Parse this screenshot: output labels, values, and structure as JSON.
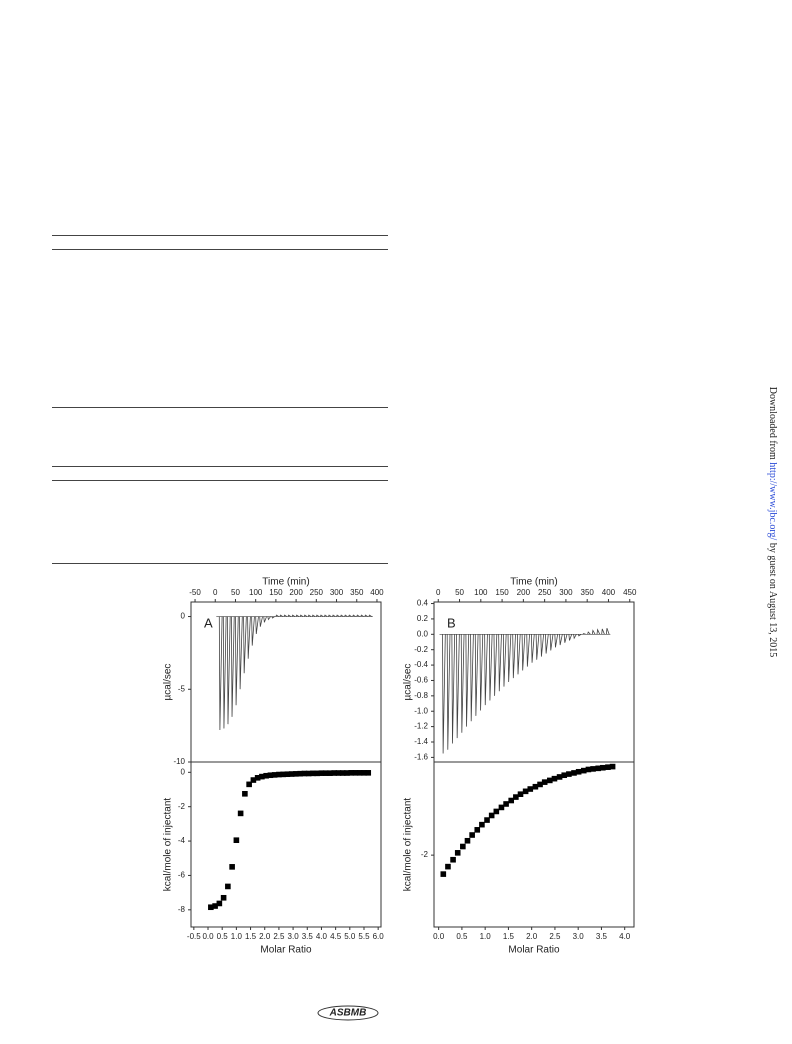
{
  "side_note": {
    "prefix": "Downloaded from ",
    "link": "http://www.jbc.org/",
    "suffix": " by guest on August 13, 2015"
  },
  "logo": "ASBMB",
  "chart_data": [
    {
      "type": "spikes",
      "panel_label": "A",
      "xlabel": "Time (min)",
      "ylabel": "µcal/sec",
      "xlim": [
        -60,
        410
      ],
      "xticks": [
        -50,
        0,
        50,
        100,
        150,
        200,
        250,
        300,
        350,
        400
      ],
      "ylim": [
        -10,
        1
      ],
      "yticks": [
        -10,
        -5,
        0
      ],
      "x": [
        10,
        20,
        30,
        40,
        50,
        60,
        70,
        80,
        90,
        100,
        110,
        120,
        130,
        140,
        150,
        160,
        170,
        180,
        190,
        200,
        210,
        220,
        230,
        240,
        250,
        260,
        270,
        280,
        290,
        300,
        310,
        320,
        330,
        340,
        350,
        360,
        370,
        380
      ],
      "values": [
        -7.8,
        -7.7,
        -7.4,
        -6.9,
        -6.1,
        -5.0,
        -3.9,
        -2.9,
        -2.0,
        -1.2,
        -0.7,
        -0.4,
        -0.2,
        -0.1,
        0.1,
        0.1,
        0.1,
        0.1,
        0.1,
        0.1,
        0.1,
        0.1,
        0.1,
        0.1,
        0.1,
        0.1,
        0.1,
        0.1,
        0.1,
        0.1,
        0.1,
        0.1,
        0.1,
        0.1,
        0.1,
        0.1,
        0.1,
        0.1
      ],
      "color": "#444444"
    },
    {
      "type": "scatter",
      "xlabel": "Molar Ratio",
      "ylabel": "kcal/mole of injectant",
      "xlim": [
        -0.6,
        6.1
      ],
      "xticks": [
        -0.5,
        {
          "value": 0,
          "label": "0.0"
        },
        0.5,
        {
          "value": 1,
          "label": "1.0"
        },
        1.5,
        {
          "value": 2,
          "label": "2.0"
        },
        2.5,
        {
          "value": 3,
          "label": "3.0"
        },
        3.5,
        {
          "value": 4,
          "label": "4.0"
        },
        4.5,
        {
          "value": 5,
          "label": "5.0"
        },
        5.5,
        {
          "value": 6,
          "label": "6.0"
        }
      ],
      "ylim": [
        -9,
        0.6
      ],
      "yticks": [
        -8,
        -6,
        -4,
        -2,
        0
      ],
      "x": [
        0.1,
        0.25,
        0.4,
        0.55,
        0.7,
        0.85,
        1,
        1.15,
        1.3,
        1.45,
        1.6,
        1.75,
        1.9,
        2.05,
        2.2,
        2.35,
        2.5,
        2.65,
        2.8,
        2.95,
        3.1,
        3.25,
        3.4,
        3.55,
        3.7,
        3.85,
        4,
        4.15,
        4.3,
        4.45,
        4.6,
        4.75,
        4.9,
        5.05,
        5.2,
        5.35,
        5.5,
        5.65
      ],
      "values": [
        -7.85,
        -7.78,
        -7.63,
        -7.3,
        -6.64,
        -5.5,
        -3.95,
        -2.39,
        -1.25,
        -0.7,
        -0.45,
        -0.32,
        -0.25,
        -0.2,
        -0.17,
        -0.15,
        -0.13,
        -0.12,
        -0.11,
        -0.1,
        -0.09,
        -0.08,
        -0.07,
        -0.07,
        -0.06,
        -0.06,
        -0.05,
        -0.05,
        -0.05,
        -0.04,
        -0.04,
        -0.04,
        -0.04,
        -0.03,
        -0.03,
        -0.03,
        -0.03,
        -0.03
      ],
      "color": "#000000"
    },
    {
      "type": "spikes",
      "panel_label": "B",
      "xlabel": "Time (min)",
      "ylabel": "µcal/sec",
      "xlim": [
        -10,
        460
      ],
      "xticks": [
        0,
        50,
        100,
        150,
        200,
        250,
        300,
        350,
        400,
        450
      ],
      "ylim": [
        -1.66,
        0.42
      ],
      "yticks": [
        0.4,
        0.2,
        {
          "value": 0,
          "label": "0.0"
        },
        -0.2,
        -0.4,
        -0.6,
        -0.8,
        {
          "value": -1,
          "label": "-1.0"
        },
        -1.2,
        -1.4,
        -1.6
      ],
      "x": [
        10,
        21,
        32,
        43,
        54,
        65,
        76,
        87,
        98,
        109,
        120,
        131,
        142,
        153,
        164,
        175,
        186,
        197,
        208,
        219,
        230,
        241,
        252,
        263,
        274,
        285,
        296,
        307,
        318,
        329,
        340,
        351,
        362,
        373,
        384,
        395
      ],
      "values": [
        -1.55,
        -1.5,
        -1.42,
        -1.35,
        -1.28,
        -1.2,
        -1.13,
        -1.06,
        -0.99,
        -0.92,
        -0.86,
        -0.8,
        -0.74,
        -0.68,
        -0.62,
        -0.57,
        -0.52,
        -0.47,
        -0.42,
        -0.37,
        -0.33,
        -0.29,
        -0.25,
        -0.21,
        -0.17,
        -0.14,
        -0.11,
        -0.08,
        -0.05,
        -0.02,
        0.01,
        0.03,
        0.05,
        0.06,
        0.07,
        0.08
      ],
      "color": "#444444"
    },
    {
      "type": "scatter",
      "xlabel": "Molar Ratio",
      "ylabel": "kcal/mole of injectant",
      "xlim": [
        -0.1,
        4.2
      ],
      "xticks": [
        {
          "value": 0,
          "label": "0.0"
        },
        0.5,
        {
          "value": 1,
          "label": "1.0"
        },
        1.5,
        {
          "value": 2,
          "label": "2.0"
        },
        2.5,
        {
          "value": 3,
          "label": "3.0"
        },
        3.5,
        {
          "value": 4,
          "label": "4.0"
        }
      ],
      "ylim": [
        -3.25,
        -0.38
      ],
      "yticks": [
        -2
      ],
      "x": [
        0.1,
        0.2,
        0.31,
        0.41,
        0.52,
        0.62,
        0.72,
        0.83,
        0.93,
        1.04,
        1.14,
        1.24,
        1.35,
        1.45,
        1.56,
        1.66,
        1.76,
        1.87,
        1.97,
        2.08,
        2.18,
        2.28,
        2.39,
        2.49,
        2.6,
        2.7,
        2.8,
        2.91,
        3.01,
        3.12,
        3.22,
        3.32,
        3.43,
        3.53,
        3.64,
        3.74
      ],
      "values": [
        -2.33,
        -2.2,
        -2.08,
        -1.96,
        -1.85,
        -1.75,
        -1.65,
        -1.56,
        -1.47,
        -1.39,
        -1.31,
        -1.24,
        -1.17,
        -1.11,
        -1.05,
        -0.99,
        -0.94,
        -0.89,
        -0.85,
        -0.81,
        -0.77,
        -0.73,
        -0.7,
        -0.67,
        -0.64,
        -0.61,
        -0.59,
        -0.57,
        -0.55,
        -0.53,
        -0.51,
        -0.5,
        -0.49,
        -0.48,
        -0.47,
        -0.46
      ],
      "color": "#000000"
    }
  ]
}
